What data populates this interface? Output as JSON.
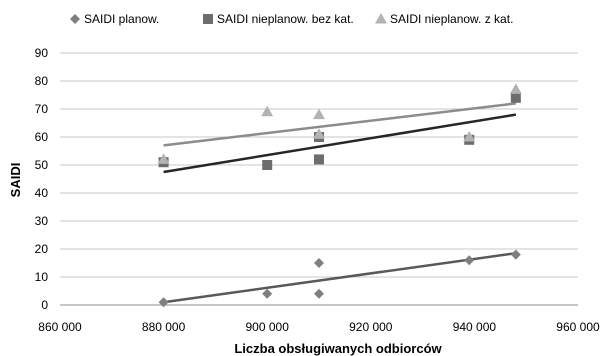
{
  "chart_data": {
    "type": "scatter",
    "title": "",
    "xlabel": "Liczba obsługiwanych odbiorców",
    "ylabel": "SAIDI",
    "xlim": [
      860000,
      960000
    ],
    "ylim": [
      0,
      90
    ],
    "x_ticks": [
      860000,
      880000,
      900000,
      920000,
      940000,
      960000
    ],
    "x_tick_labels": [
      "860 000",
      "880 000",
      "900 000",
      "920 000",
      "940 000",
      "960 000"
    ],
    "y_ticks": [
      0,
      10,
      20,
      30,
      40,
      50,
      60,
      70,
      80,
      90
    ],
    "y_tick_labels": [
      "0",
      "10",
      "20",
      "30",
      "40",
      "50",
      "60",
      "70",
      "80",
      "90"
    ],
    "grid": "horizontal",
    "legend_position": "top",
    "series": [
      {
        "name": "SAIDI planow.",
        "marker": "diamond",
        "color": "#7f7f7f",
        "trend_color": "#595959",
        "points": [
          [
            880000,
            1
          ],
          [
            900000,
            4
          ],
          [
            910000,
            4
          ],
          [
            910000,
            15
          ],
          [
            939000,
            16
          ],
          [
            948000,
            18
          ]
        ],
        "trend": [
          [
            880000,
            1
          ],
          [
            948000,
            18.5
          ]
        ]
      },
      {
        "name": "SAIDI nieplanow. bez kat.",
        "marker": "square",
        "color": "#6d6d6d",
        "trend_color": "#262626",
        "points": [
          [
            880000,
            51
          ],
          [
            900000,
            50
          ],
          [
            910000,
            52
          ],
          [
            910000,
            60
          ],
          [
            939000,
            59
          ],
          [
            948000,
            74
          ]
        ],
        "trend": [
          [
            880000,
            47.5
          ],
          [
            948000,
            68
          ]
        ]
      },
      {
        "name": "SAIDI nieplanow.  z kat.",
        "marker": "triangle",
        "color": "#b3b3b3",
        "trend_color": "#8c8c8c",
        "points": [
          [
            880000,
            52
          ],
          [
            900000,
            69
          ],
          [
            910000,
            68
          ],
          [
            910000,
            61
          ],
          [
            939000,
            60
          ],
          [
            948000,
            77
          ]
        ],
        "trend": [
          [
            880000,
            57
          ],
          [
            948000,
            72
          ]
        ]
      }
    ]
  }
}
